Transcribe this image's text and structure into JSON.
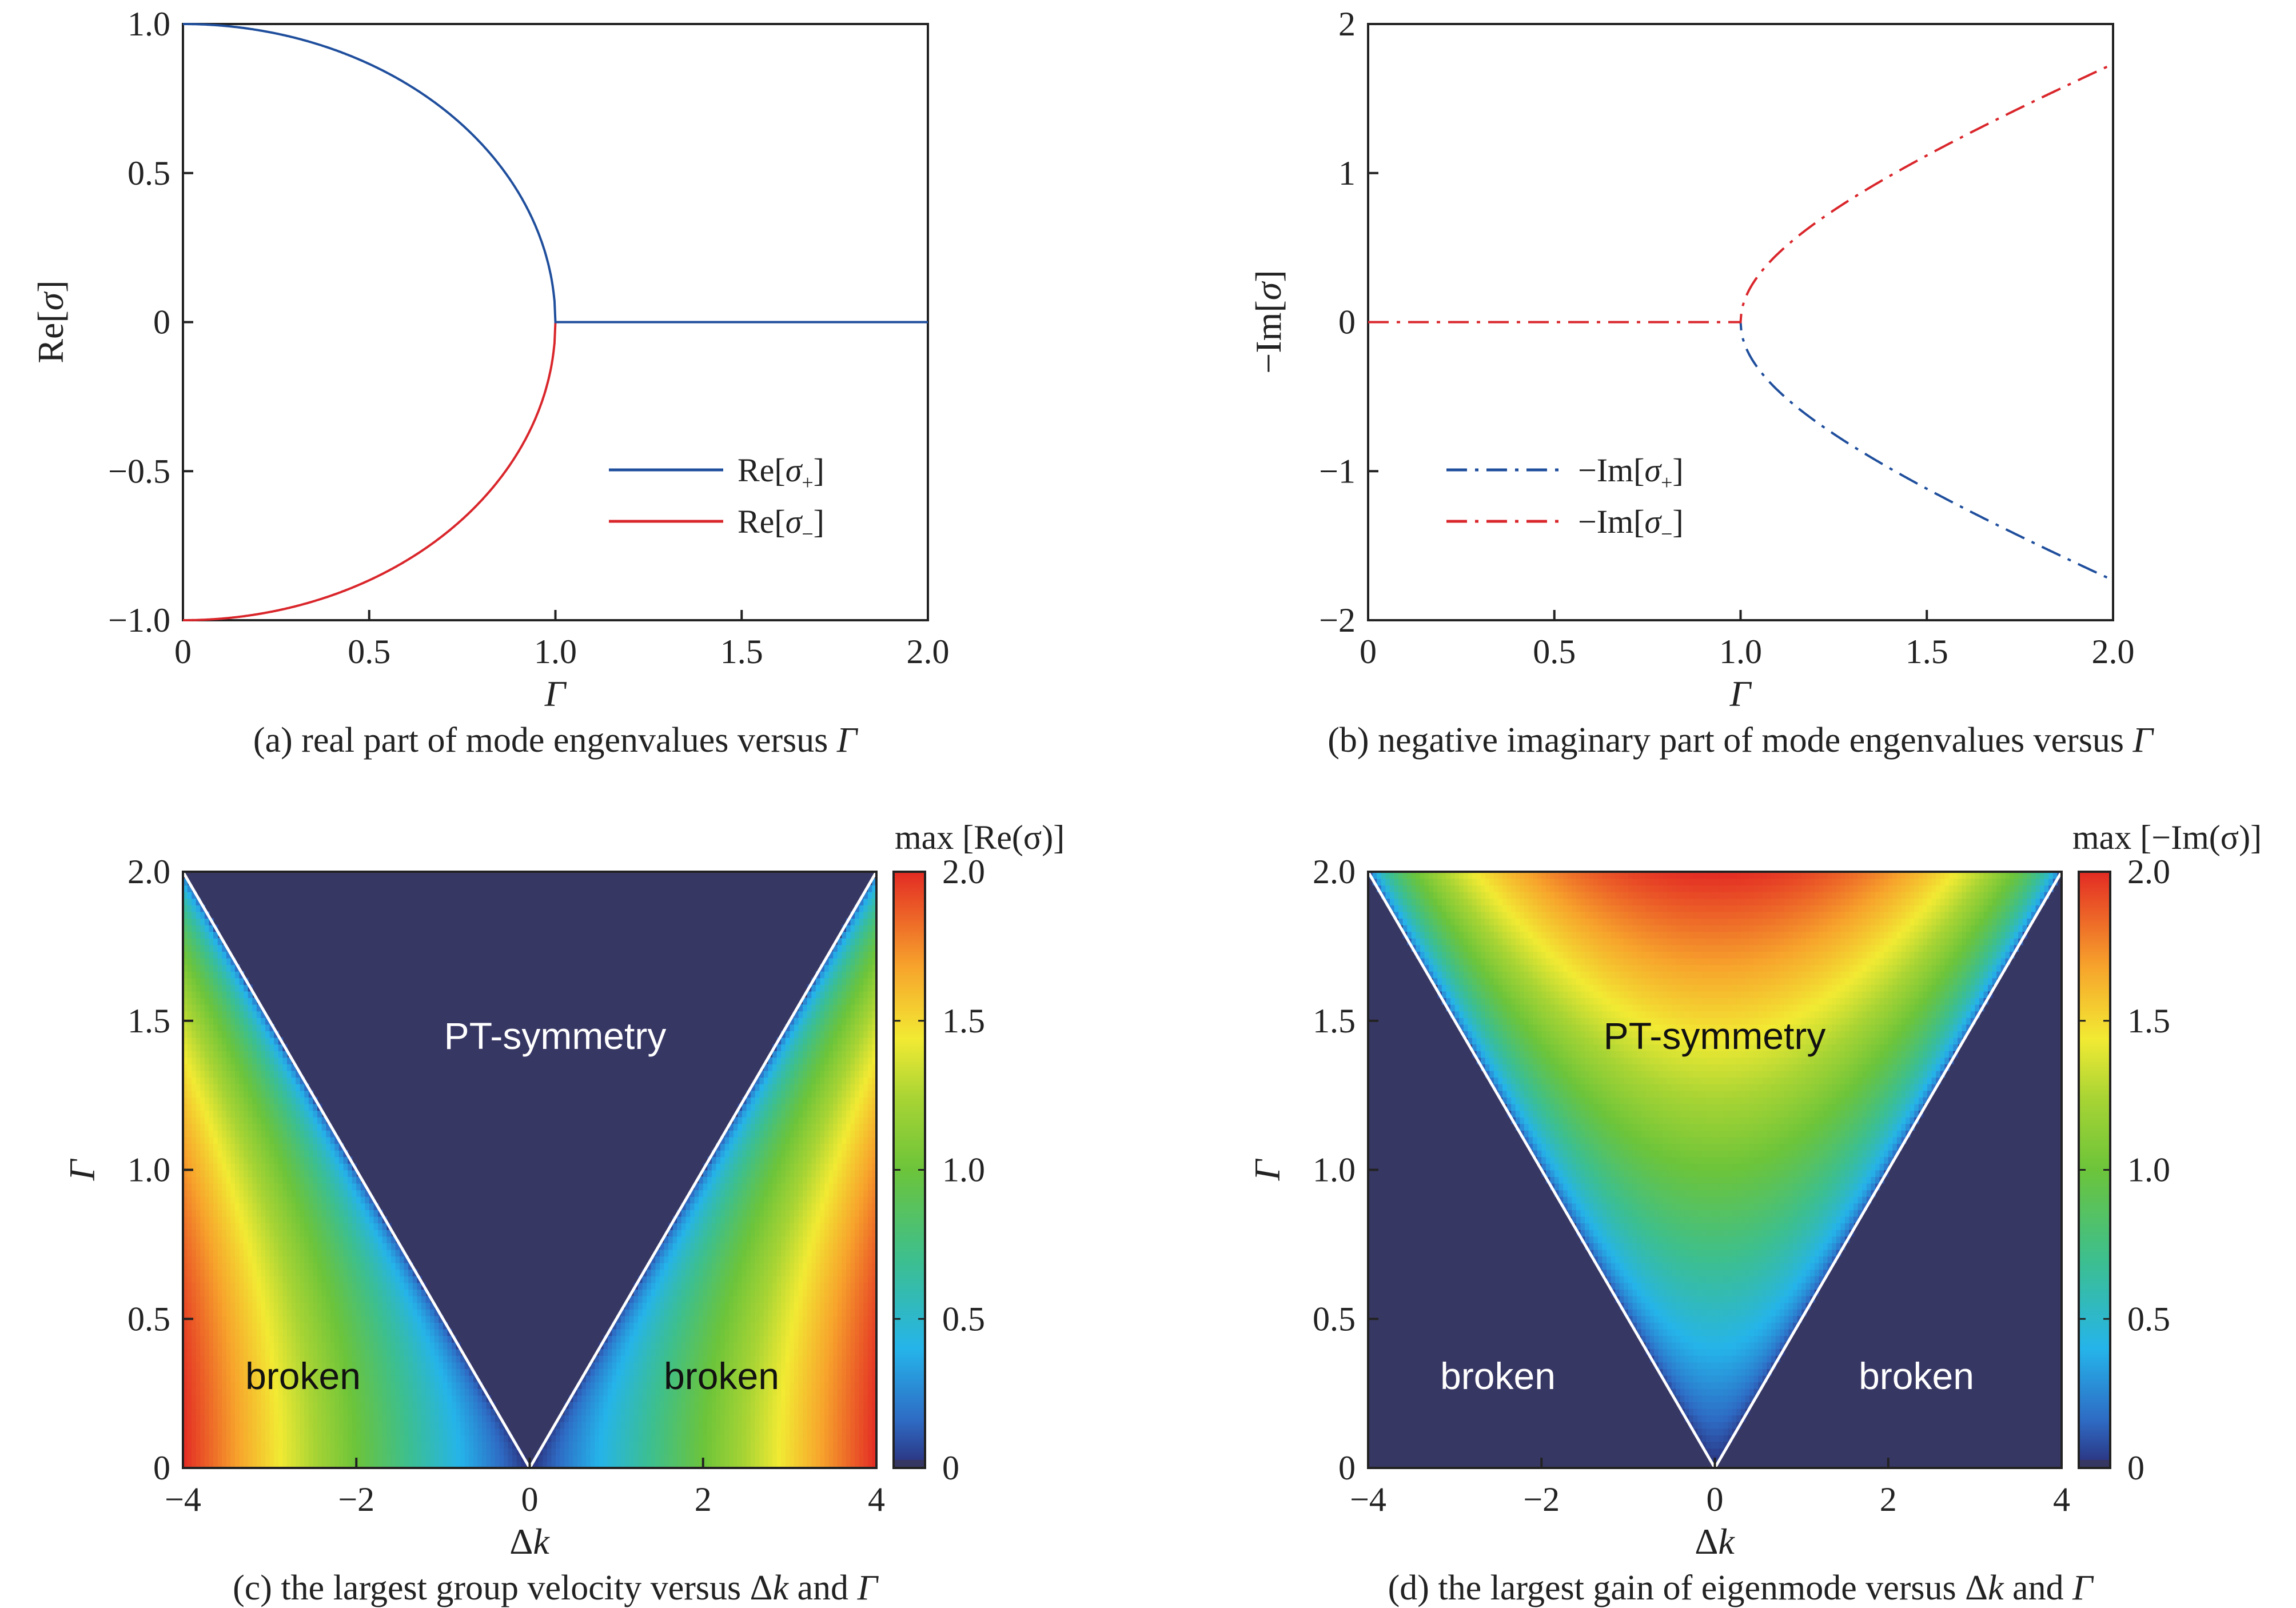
{
  "chart_data": [
    {
      "id": "a",
      "type": "line",
      "caption": "(a) real part of mode engenvalues versus Γ",
      "xlabel": "Γ",
      "ylabel": "Re[σ]",
      "xlim": [
        0,
        2
      ],
      "ylim": [
        -1,
        1
      ],
      "xticks": [
        "0",
        "0.5",
        "1.0",
        "1.5",
        "2.0"
      ],
      "yticks": [
        "−1.0",
        "−0.5",
        "0",
        "0.5",
        "1.0"
      ],
      "legend": [
        "Re[σ+]",
        "Re[σ−]"
      ],
      "legend_position": "bottom-right",
      "series": [
        {
          "name": "Re[σ+]",
          "color": "#1f4e9c",
          "style": "solid",
          "formula": "sqrt(1-Γ^2) for Γ<1, 0 for Γ≥1"
        },
        {
          "name": "Re[σ−]",
          "color": "#d9262b",
          "style": "solid",
          "formula": "-sqrt(1-Γ^2) for Γ<1, 0 for Γ≥1"
        }
      ]
    },
    {
      "id": "b",
      "type": "line",
      "caption": "(b) negative imaginary part of mode engenvalues versus Γ",
      "xlabel": "Γ",
      "ylabel": "−Im[σ]",
      "xlim": [
        0,
        2
      ],
      "ylim": [
        -2,
        2
      ],
      "xticks": [
        "0",
        "0.5",
        "1.0",
        "1.5",
        "2.0"
      ],
      "yticks": [
        "−2",
        "−1",
        "0",
        "1",
        "2"
      ],
      "legend": [
        "−Im[σ+]",
        "−Im[σ−]"
      ],
      "legend_position": "bottom-left",
      "series": [
        {
          "name": "−Im[σ+]",
          "color": "#1f4e9c",
          "style": "dash-dot",
          "formula": "0 for Γ<1, -sqrt(Γ^2-1) for Γ≥1"
        },
        {
          "name": "−Im[σ−]",
          "color": "#d9262b",
          "style": "dash-dot",
          "formula": "0 for Γ<1, +sqrt(Γ^2-1) for Γ≥1"
        }
      ]
    },
    {
      "id": "c",
      "type": "heatmap",
      "caption": "(c) the largest group velocity versus Δk and Γ",
      "xlabel": "Δk",
      "ylabel": "Γ",
      "xlim": [
        -4,
        4
      ],
      "ylim": [
        0,
        2
      ],
      "xticks": [
        "−4",
        "−2",
        "0",
        "2",
        "4"
      ],
      "yticks": [
        "0",
        "0.5",
        "1.0",
        "1.5",
        "2.0"
      ],
      "colorbar_label": "max [Re(σ)]",
      "colorbar_ticks": [
        "0",
        "0.5",
        "1.0",
        "1.5",
        "2.0"
      ],
      "zlim": [
        0,
        2
      ],
      "boundary": "Γ = |Δk|/2",
      "annotations": [
        "PT-symmetry",
        "broken",
        "broken"
      ]
    },
    {
      "id": "d",
      "type": "heatmap",
      "caption": "(d) the largest gain of eigenmode versus Δk and Γ",
      "xlabel": "Δk",
      "ylabel": "Γ",
      "xlim": [
        -4,
        4
      ],
      "ylim": [
        0,
        2
      ],
      "xticks": [
        "−4",
        "−2",
        "0",
        "2",
        "4"
      ],
      "yticks": [
        "0",
        "0.5",
        "1.0",
        "1.5",
        "2.0"
      ],
      "colorbar_label": "max [−Im(σ)]",
      "colorbar_ticks": [
        "0",
        "0.5",
        "1.0",
        "1.5",
        "2.0"
      ],
      "zlim": [
        0,
        2
      ],
      "boundary": "Γ = |Δk|/2",
      "annotations": [
        "PT-symmetry",
        "broken",
        "broken"
      ]
    }
  ],
  "colors": {
    "blue_series": "#1f4e9c",
    "red_series": "#d9262b",
    "map_background": "#373764"
  }
}
